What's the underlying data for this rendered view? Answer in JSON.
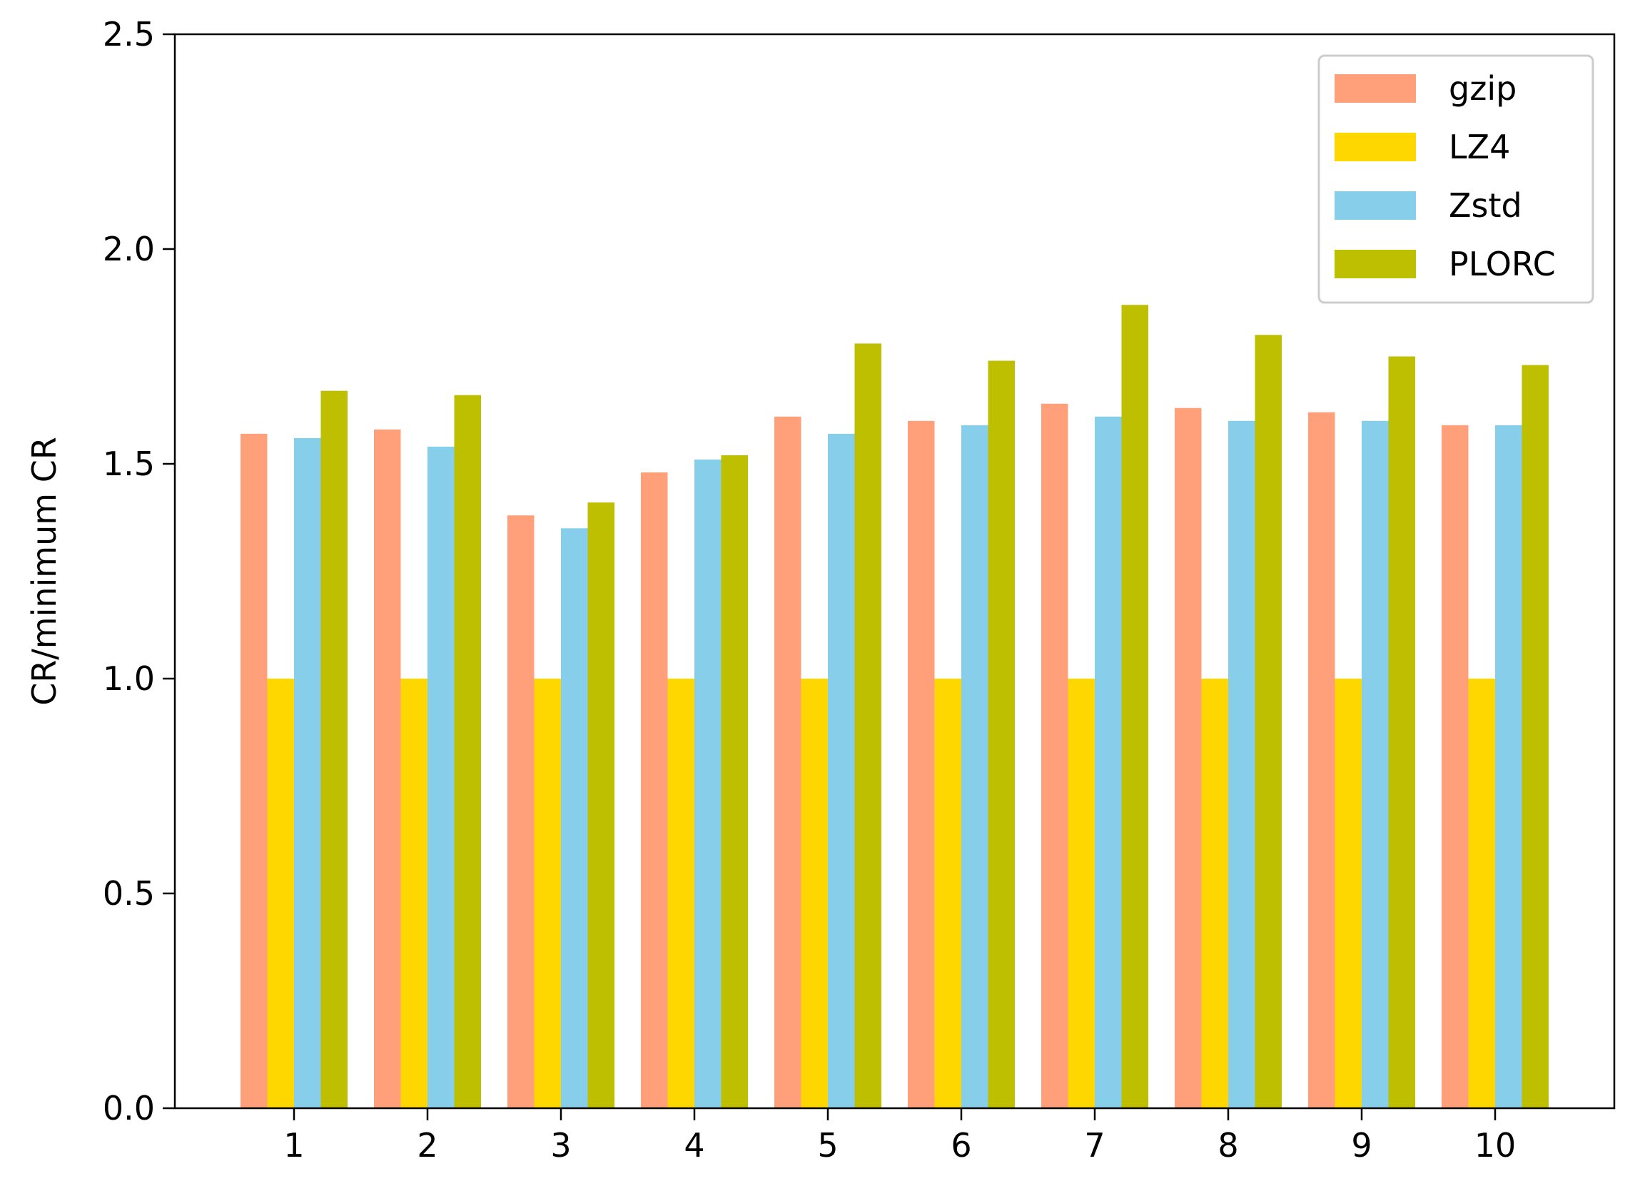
{
  "chart_data": {
    "type": "bar",
    "title": "",
    "xlabel": "",
    "ylabel": "CR/minimum CR",
    "categories": [
      "1",
      "2",
      "3",
      "4",
      "5",
      "6",
      "7",
      "8",
      "9",
      "10"
    ],
    "ylim": [
      0,
      2.5
    ],
    "yticks": [
      "0.0",
      "0.5",
      "1.0",
      "1.5",
      "2.0",
      "2.5"
    ],
    "grid": false,
    "legend_position": "top-right",
    "series": [
      {
        "name": "gzip",
        "color": "#FFA07A",
        "values": [
          1.57,
          1.58,
          1.38,
          1.48,
          1.61,
          1.6,
          1.64,
          1.63,
          1.62,
          1.59
        ]
      },
      {
        "name": "LZ4",
        "color": "#FFD700",
        "values": [
          1.0,
          1.0,
          1.0,
          1.0,
          1.0,
          1.0,
          1.0,
          1.0,
          1.0,
          1.0
        ]
      },
      {
        "name": "Zstd",
        "color": "#87CEEB",
        "values": [
          1.56,
          1.54,
          1.35,
          1.51,
          1.57,
          1.59,
          1.61,
          1.6,
          1.6,
          1.59
        ]
      },
      {
        "name": "PLORC",
        "color": "#BDBF00",
        "values": [
          1.67,
          1.66,
          1.41,
          1.52,
          1.78,
          1.74,
          1.87,
          1.8,
          1.75,
          1.73
        ]
      }
    ]
  }
}
